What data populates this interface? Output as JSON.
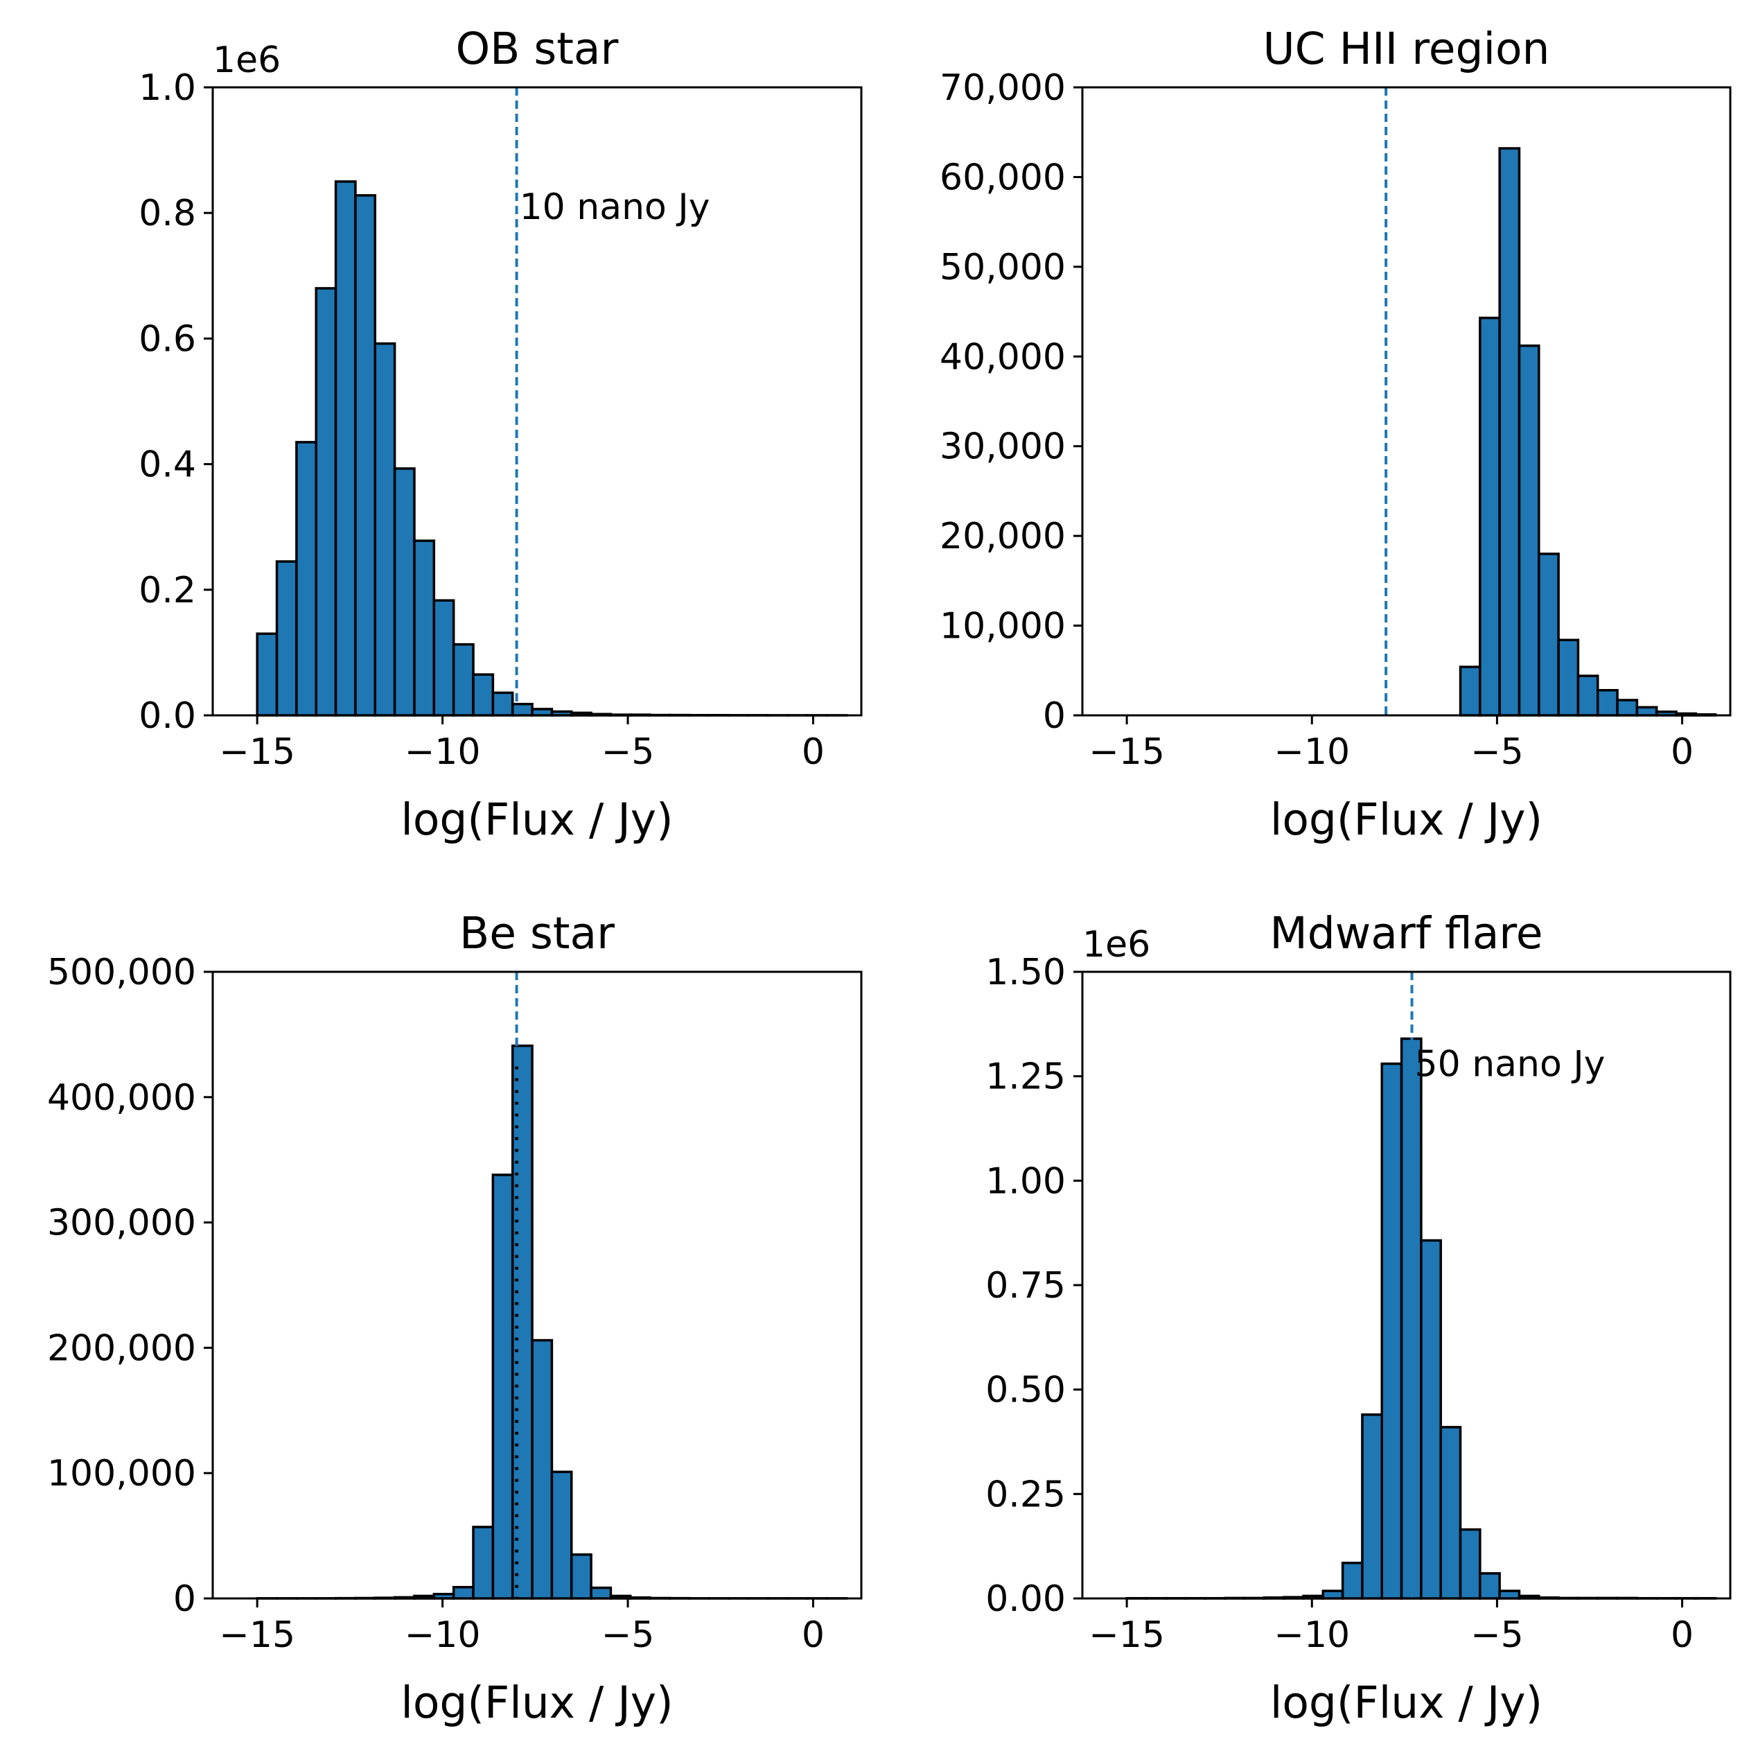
{
  "colors": {
    "bar": "#1f77b4",
    "edge": "#000000",
    "ref_line": "#1f77b4",
    "dotted_line": "#000000"
  },
  "chart_data": [
    {
      "type": "bar",
      "title": "OB star",
      "xlabel": "log(Flux / Jy)",
      "ylabel": "",
      "xlim": [
        -16.2,
        1.3
      ],
      "ylim": [
        0,
        1.0
      ],
      "y_offset_label": "1e6",
      "y_scale": 1000000,
      "xticks": [
        -15,
        -10,
        -5,
        0
      ],
      "xtick_labels": [
        "−15",
        "−10",
        "−5",
        "0"
      ],
      "yticks": [
        0,
        0.2,
        0.4,
        0.6,
        0.8,
        1.0
      ],
      "ytick_labels": [
        "0.0",
        "0.2",
        "0.4",
        "0.6",
        "0.8",
        "1.0"
      ],
      "bin_start": -15.0,
      "bin_width": 0.53,
      "values": [
        0.13,
        0.245,
        0.435,
        0.68,
        0.85,
        0.828,
        0.592,
        0.393,
        0.278,
        0.183,
        0.113,
        0.065,
        0.036,
        0.018,
        0.01,
        0.006,
        0.004,
        0.002,
        0.001,
        0.001,
        0.0005,
        0.0005,
        0.0003,
        0.0003,
        0.0002,
        0.0002,
        0.0001,
        0.0001,
        0.0001,
        0.0001
      ],
      "ref_line_x": -8.0,
      "annotation": "10 nano Jy",
      "annotation_x": -8.0,
      "annotation_y": 0.81
    },
    {
      "type": "bar",
      "title": "UC HII region",
      "xlabel": "log(Flux / Jy)",
      "ylabel": "",
      "xlim": [
        -16.2,
        1.3
      ],
      "ylim": [
        0,
        70000
      ],
      "y_scale": 1,
      "xticks": [
        -15,
        -10,
        -5,
        0
      ],
      "xtick_labels": [
        "−15",
        "−10",
        "−5",
        "0"
      ],
      "yticks": [
        0,
        10000,
        20000,
        30000,
        40000,
        50000,
        60000,
        70000
      ],
      "ytick_labels": [
        "0",
        "10,000",
        "20,000",
        "30,000",
        "40,000",
        "50,000",
        "60,000",
        "70,000"
      ],
      "bin_start": -15.0,
      "bin_width": 0.53,
      "values": [
        0,
        0,
        0,
        0,
        0,
        0,
        0,
        0,
        0,
        0,
        0,
        0,
        0,
        0,
        0,
        0,
        0,
        5400,
        44300,
        63200,
        41200,
        18000,
        8400,
        4400,
        2800,
        1700,
        900,
        400,
        200,
        100
      ],
      "ref_line_x": -8.0
    },
    {
      "type": "bar",
      "title": "Be star",
      "xlabel": "log(Flux / Jy)",
      "ylabel": "",
      "xlim": [
        -16.2,
        1.3
      ],
      "ylim": [
        0,
        500000
      ],
      "y_scale": 1,
      "xticks": [
        -15,
        -10,
        -5,
        0
      ],
      "xtick_labels": [
        "−15",
        "−10",
        "−5",
        "0"
      ],
      "yticks": [
        0,
        100000,
        200000,
        300000,
        400000,
        500000
      ],
      "ytick_labels": [
        "0",
        "100,000",
        "200,000",
        "300,000",
        "400,000",
        "500,000"
      ],
      "bin_start": -15.0,
      "bin_width": 0.53,
      "values": [
        100,
        100,
        100,
        100,
        200,
        300,
        500,
        900,
        2000,
        3500,
        9000,
        57000,
        338000,
        441000,
        206000,
        101000,
        35000,
        8500,
        2000,
        700,
        300,
        200,
        100,
        100,
        100,
        100,
        100,
        100,
        100,
        100
      ],
      "ref_line_x": -8.0,
      "dotted_line_x": -8.0
    },
    {
      "type": "bar",
      "title": "Mdwarf flare",
      "xlabel": "log(Flux / Jy)",
      "ylabel": "",
      "xlim": [
        -16.2,
        1.3
      ],
      "ylim": [
        0,
        1.5
      ],
      "y_offset_label": "1e6",
      "y_scale": 1000000,
      "xticks": [
        -15,
        -10,
        -5,
        0
      ],
      "xtick_labels": [
        "−15",
        "−10",
        "−5",
        "0"
      ],
      "yticks": [
        0,
        0.25,
        0.5,
        0.75,
        1.0,
        1.25,
        1.5
      ],
      "ytick_labels": [
        "0.00",
        "0.25",
        "0.50",
        "0.75",
        "1.00",
        "1.25",
        "1.50"
      ],
      "bin_start": -15.0,
      "bin_width": 0.53,
      "values": [
        0.0005,
        0.0005,
        0.0005,
        0.0005,
        0.0005,
        0.001,
        0.001,
        0.002,
        0.003,
        0.006,
        0.018,
        0.085,
        0.44,
        1.28,
        1.34,
        0.857,
        0.41,
        0.165,
        0.06,
        0.018,
        0.006,
        0.002,
        0.001,
        0.001,
        0.001,
        0.001,
        0.0005,
        0.0005,
        0.0005,
        0.0005
      ],
      "ref_line_x": -7.3,
      "annotation": "50 nano Jy",
      "annotation_x": -7.3,
      "annotation_y": 1.28
    }
  ]
}
